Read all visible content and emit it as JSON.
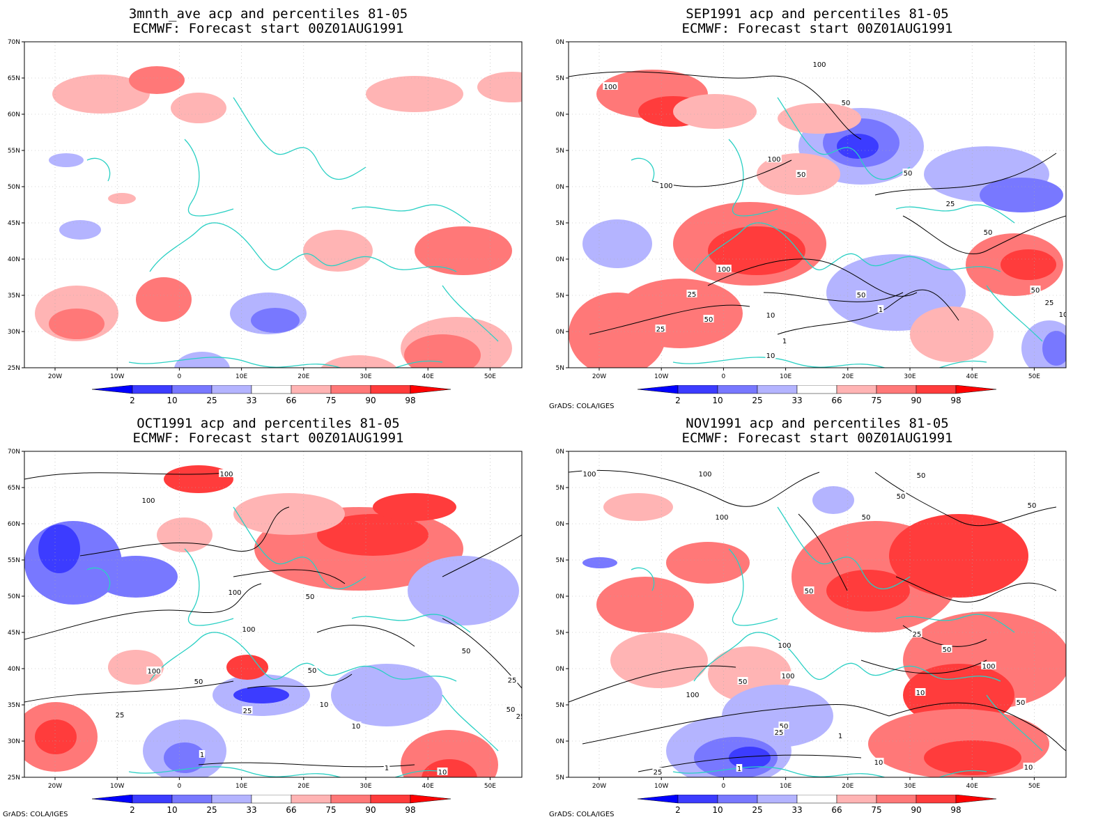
{
  "panels": [
    {
      "title_line1": "3mnth_ave acp and percentiles 81-05",
      "title_line2": "ECMWF: Forecast start 00Z01AUG1991",
      "credit": ""
    },
    {
      "title_line1": "SEP1991 acp and percentiles 81-05",
      "title_line2": "ECMWF: Forecast start 00Z01AUG1991",
      "credit": "GrADS: COLA/IGES"
    },
    {
      "title_line1": "OCT1991 acp and percentiles 81-05",
      "title_line2": "ECMWF: Forecast start 00Z01AUG1991",
      "credit": "GrADS: COLA/IGES"
    },
    {
      "title_line1": "NOV1991 acp and percentiles 81-05",
      "title_line2": "ECMWF: Forecast start 00Z01AUG1991",
      "credit": "GrADS: COLA/IGES"
    }
  ],
  "axes": {
    "lat_labels": [
      "70N",
      "65N",
      "60N",
      "55N",
      "50N",
      "45N",
      "40N",
      "35N",
      "30N",
      "25N"
    ],
    "lon_labels": [
      "20W",
      "10W",
      "0",
      "10E",
      "20E",
      "30E",
      "40E",
      "50E"
    ],
    "lat_range": [
      25,
      70
    ],
    "lon_range": [
      -25,
      55
    ]
  },
  "colorbar": {
    "labels": [
      "2",
      "10",
      "25",
      "33",
      "66",
      "75",
      "90",
      "98"
    ],
    "colors": [
      "#0000ff",
      "#3c3cff",
      "#7878ff",
      "#b4b4ff",
      "#ffffff",
      "#ffb4b4",
      "#ff7878",
      "#ff3c3c",
      "#ff0000"
    ]
  },
  "contour_labels": [
    [],
    [
      "100",
      "100",
      "100",
      "100",
      "50",
      "50",
      "50",
      "25",
      "100",
      "50",
      "50",
      "25",
      "50",
      "10",
      "25",
      "1",
      "10",
      "1",
      "50",
      "25",
      "10"
    ],
    [
      "100",
      "100",
      "100",
      "50",
      "100",
      "100",
      "50",
      "50",
      "10",
      "25",
      "25",
      "1",
      "1",
      "10",
      "50",
      "25",
      "50",
      "25",
      "10"
    ],
    [
      "100",
      "100",
      "100",
      "50",
      "50",
      "50",
      "50",
      "50",
      "100",
      "50",
      "100",
      "50",
      "25",
      "100",
      "50",
      "100",
      "50",
      "25",
      "10",
      "1",
      "10",
      "25",
      "1",
      "25",
      "10"
    ]
  ],
  "colors": {
    "coastline": "#2ad0c4",
    "contour": "#000000",
    "grid": "#aaaaaa"
  }
}
